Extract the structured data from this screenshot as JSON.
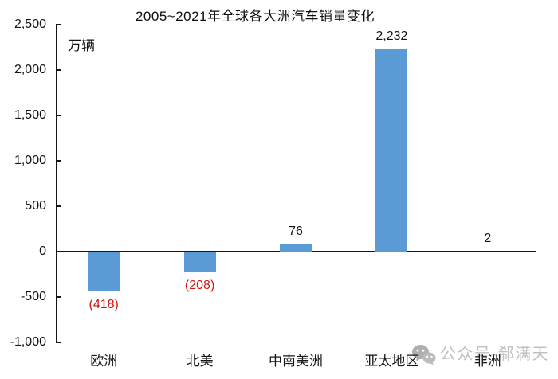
{
  "watermark": {
    "icon": "wechat-logo",
    "text": "公众号-郗满天",
    "color": "#bdbdbd"
  },
  "colors": {
    "bar": "#5B9BD5",
    "negative_label": "#d11414",
    "positive_label": "#111111",
    "axis": "#161616",
    "watermark_gray": "#bdbdbd"
  },
  "chart_data": {
    "type": "bar",
    "title": "2005~2021年全球各大洲汽车销量变化",
    "ylabel_unit": "万辆",
    "categories": [
      "欧洲",
      "北美",
      "中南美洲",
      "亚太地区",
      "非洲"
    ],
    "values": [
      -418,
      -208,
      76,
      2232,
      2
    ],
    "value_labels": [
      "(418)",
      "(208)",
      "76",
      "2,232",
      "2"
    ],
    "series_note": "negative values rendered in red parentheses, positives in black",
    "ylim": [
      -1000,
      2500
    ],
    "ytick_step": 500,
    "yticks": [
      "2,500",
      "2,000",
      "1,500",
      "1,000",
      "500",
      "0",
      "-500",
      "-1,000"
    ],
    "grid": false,
    "legend": "none",
    "bar_color": "#5B9BD5"
  }
}
